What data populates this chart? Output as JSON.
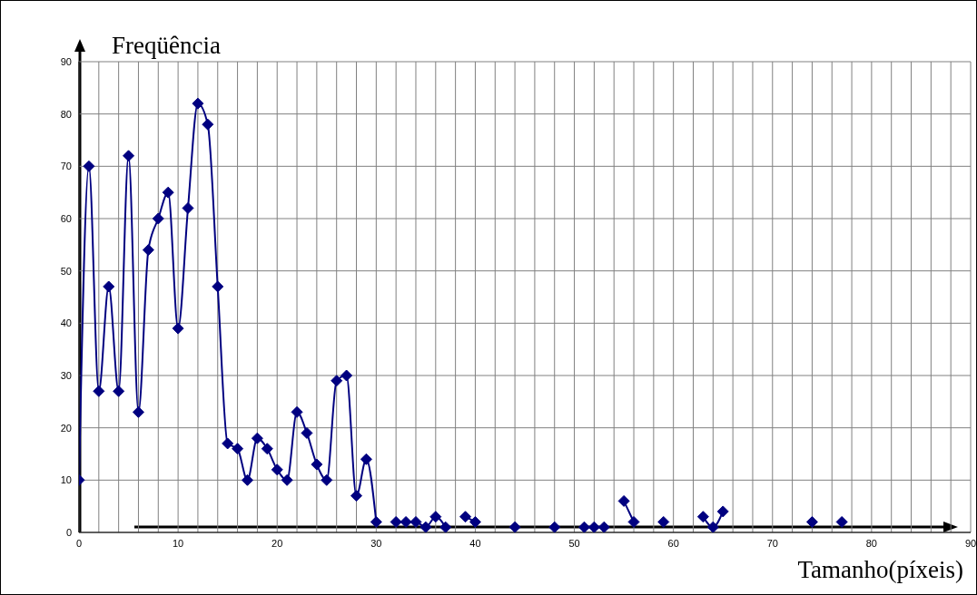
{
  "chart_data": {
    "type": "line",
    "xlabel": "Tamanho(píxeis)",
    "ylabel": "Freqüência",
    "x": [
      0,
      1,
      2,
      3,
      4,
      5,
      6,
      7,
      8,
      9,
      10,
      11,
      12,
      13,
      14,
      15,
      16,
      17,
      18,
      19,
      20,
      21,
      22,
      23,
      24,
      25,
      26,
      27,
      28,
      29,
      30,
      31,
      32,
      33,
      34,
      35,
      36,
      37,
      38,
      39,
      40,
      41,
      42,
      43,
      44,
      45,
      46,
      47,
      48,
      49,
      50,
      51,
      52,
      53,
      54,
      55,
      56,
      57,
      58,
      59,
      60,
      61,
      62,
      63,
      64,
      65,
      66,
      67,
      68,
      69,
      70,
      71,
      72,
      73,
      74,
      75,
      76,
      77
    ],
    "series": [
      {
        "color": "#000080",
        "values": [
          10,
          70,
          27,
          47,
          27,
          72,
          23,
          54,
          60,
          65,
          39,
          62,
          82,
          78,
          47,
          17,
          16,
          10,
          18,
          16,
          12,
          10,
          23,
          19,
          13,
          10,
          29,
          30,
          7,
          14,
          2,
          null,
          2,
          2,
          2,
          1,
          3,
          1,
          null,
          3,
          2,
          null,
          null,
          null,
          1,
          null,
          null,
          null,
          1,
          null,
          null,
          1,
          1,
          1,
          null,
          6,
          2,
          null,
          null,
          2,
          null,
          null,
          null,
          3,
          1,
          4,
          null,
          null,
          null,
          null,
          null,
          null,
          null,
          null,
          2,
          null,
          null,
          2
        ]
      }
    ],
    "xlim": [
      0,
      90
    ],
    "xticks": [
      0,
      {
        "value": 2,
        "label": null
      },
      {
        "value": 4,
        "label": null
      },
      {
        "value": 6,
        "label": null
      },
      {
        "value": 8,
        "label": null
      },
      10,
      {
        "value": 12,
        "label": null
      },
      {
        "value": 14,
        "label": null
      },
      {
        "value": 16,
        "label": null
      },
      {
        "value": 18,
        "label": null
      },
      20,
      {
        "value": 22,
        "label": null
      },
      {
        "value": 24,
        "label": null
      },
      {
        "value": 26,
        "label": null
      },
      {
        "value": 28,
        "label": null
      },
      30,
      {
        "value": 32,
        "label": null
      },
      {
        "value": 34,
        "label": null
      },
      {
        "value": 36,
        "label": null
      },
      {
        "value": 38,
        "label": null
      },
      40,
      {
        "value": 42,
        "label": null
      },
      {
        "value": 44,
        "label": null
      },
      {
        "value": 46,
        "label": null
      },
      {
        "value": 48,
        "label": null
      },
      50,
      {
        "value": 52,
        "label": null
      },
      {
        "value": 54,
        "label": null
      },
      {
        "value": 56,
        "label": null
      },
      {
        "value": 58,
        "label": null
      },
      60,
      {
        "value": 62,
        "label": null
      },
      {
        "value": 64,
        "label": null
      },
      {
        "value": 66,
        "label": null
      },
      {
        "value": 68,
        "label": null
      },
      70,
      {
        "value": 72,
        "label": null
      },
      {
        "value": 74,
        "label": null
      },
      {
        "value": 76,
        "label": null
      },
      {
        "value": 78,
        "label": null
      },
      80,
      {
        "value": 82,
        "label": null
      },
      {
        "value": 84,
        "label": null
      },
      {
        "value": 86,
        "label": null
      },
      {
        "value": 88,
        "label": null
      },
      90
    ],
    "ylim": [
      0,
      90
    ],
    "yticks": [
      0,
      10,
      20,
      30,
      40,
      50,
      60,
      70,
      80,
      90
    ],
    "grid": true,
    "marker": "diamond",
    "line_style": "solid"
  }
}
